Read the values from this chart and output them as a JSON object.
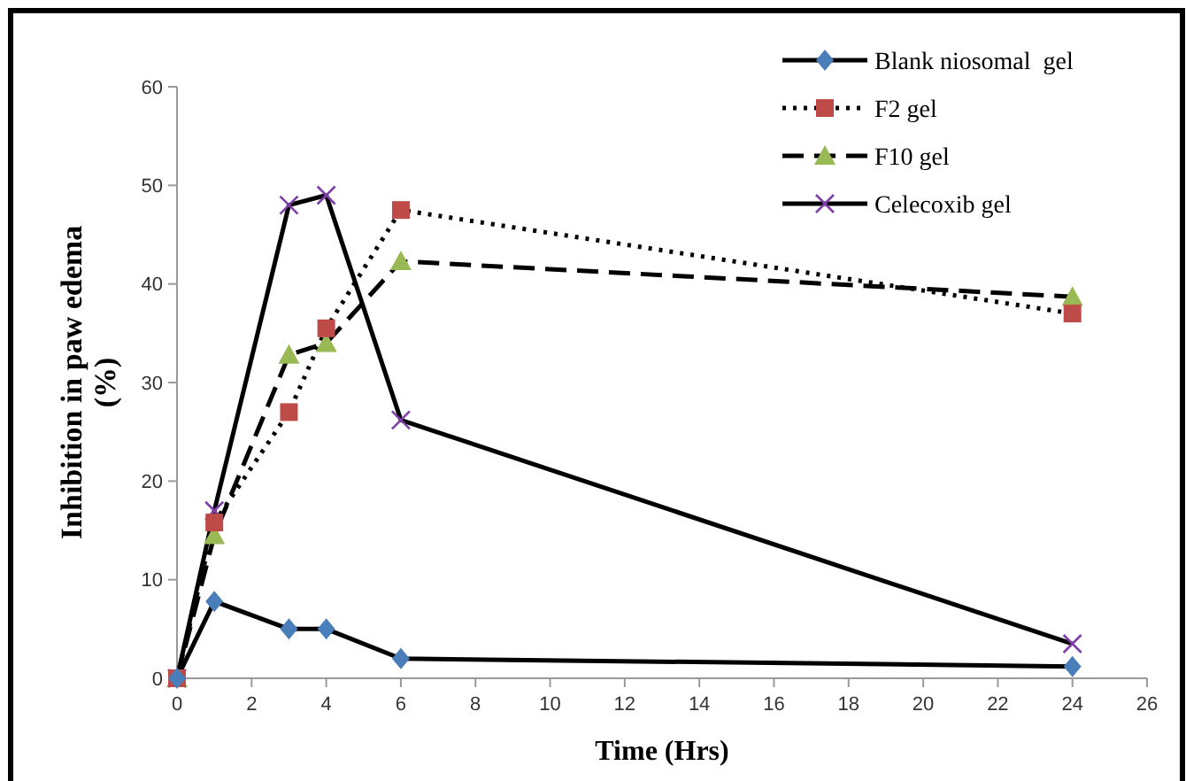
{
  "chart_data": {
    "type": "line",
    "xlabel": "Time (Hrs)",
    "ylabel": "Inhibition in paw edema (%)",
    "x": [
      0,
      1,
      3,
      4,
      6,
      24
    ],
    "xlim": [
      0,
      26
    ],
    "xticks": [
      0,
      2,
      4,
      6,
      8,
      10,
      12,
      14,
      16,
      18,
      20,
      22,
      24,
      26
    ],
    "ylim": [
      0,
      60
    ],
    "yticks": [
      0,
      10,
      20,
      30,
      40,
      50,
      60
    ],
    "grid": false,
    "legend": "top right",
    "series": [
      {
        "name": "Blank niosomal  gel",
        "color": "#4a7ebb",
        "marker": "diamond",
        "line_style": "solid",
        "values": [
          0,
          7.8,
          5,
          5,
          2,
          1.2
        ]
      },
      {
        "name": "F2 gel",
        "color": "#be4b48",
        "marker": "square",
        "line_style": "dotted",
        "values": [
          0,
          15.8,
          27,
          35.5,
          47.5,
          37
        ]
      },
      {
        "name": "F10 gel",
        "color": "#98b954",
        "marker": "triangle",
        "line_style": "dashed",
        "values": [
          0,
          14.5,
          32.8,
          34,
          42.3,
          38.7
        ]
      },
      {
        "name": "Celecoxib gel",
        "color": "#7e3fa8",
        "marker": "cross",
        "line_style": "solid",
        "values": [
          0,
          17,
          48,
          49,
          26.2,
          3.5
        ]
      }
    ]
  }
}
